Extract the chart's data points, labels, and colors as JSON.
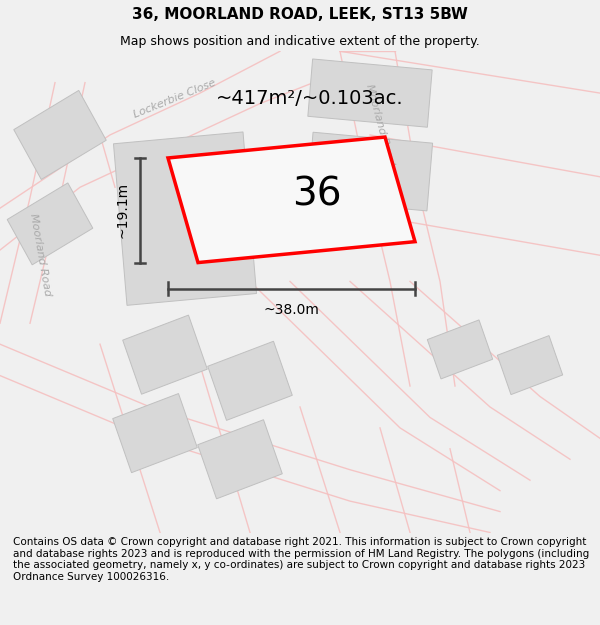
{
  "title": "36, MOORLAND ROAD, LEEK, ST13 5BW",
  "subtitle": "Map shows position and indicative extent of the property.",
  "area_label": "~417m²/~0.103ac.",
  "width_label": "~38.0m",
  "height_label": "~19.1m",
  "number_label": "36",
  "copyright_text": "Contains OS data © Crown copyright and database right 2021. This information is subject to Crown copyright and database rights 2023 and is reproduced with the permission of HM Land Registry. The polygons (including the associated geometry, namely x, y co-ordinates) are subject to Crown copyright and database rights 2023 Ordnance Survey 100026316.",
  "bg_color": "#f0f0f0",
  "map_bg": "#ffffff",
  "road_color": "#f5c0c0",
  "road_color2": "#e8a8a8",
  "building_color": "#d8d8d8",
  "building_edge": "#c0c0c0",
  "property_color": "#ff0000",
  "dimension_color": "#444444",
  "label_color": "#aaaaaa",
  "title_fontsize": 11,
  "subtitle_fontsize": 9,
  "area_fontsize": 14,
  "number_fontsize": 28,
  "dim_fontsize": 10,
  "road_label_fontsize": 8,
  "copyright_fontsize": 7.5,
  "figsize": [
    6.0,
    6.25
  ],
  "dpi": 100
}
